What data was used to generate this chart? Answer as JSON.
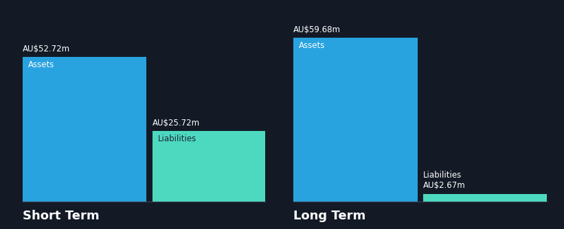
{
  "background_color": "#131a26",
  "short_term": {
    "assets_value": 52.72,
    "liabilities_value": 25.72,
    "assets_label": "Assets",
    "liabilities_label": "Liabilities",
    "assets_value_str": "AU$52.72m",
    "liabilities_value_str": "AU$25.72m",
    "section_label": "Short Term"
  },
  "long_term": {
    "assets_value": 59.68,
    "liabilities_value": 2.67,
    "assets_label": "Assets",
    "liabilities_label": "Liabilities",
    "assets_value_str": "AU$59.68m",
    "liabilities_value_str": "AU$2.67m",
    "section_label": "Long Term"
  },
  "assets_color": "#29a3e0",
  "liabilities_color": "#4dd9c0",
  "text_color": "#ffffff",
  "liabilities_label_color": "#1a2535",
  "max_value": 65,
  "section_label_fontsize": 13,
  "value_label_fontsize": 8.5,
  "bar_label_fontsize": 8.5
}
